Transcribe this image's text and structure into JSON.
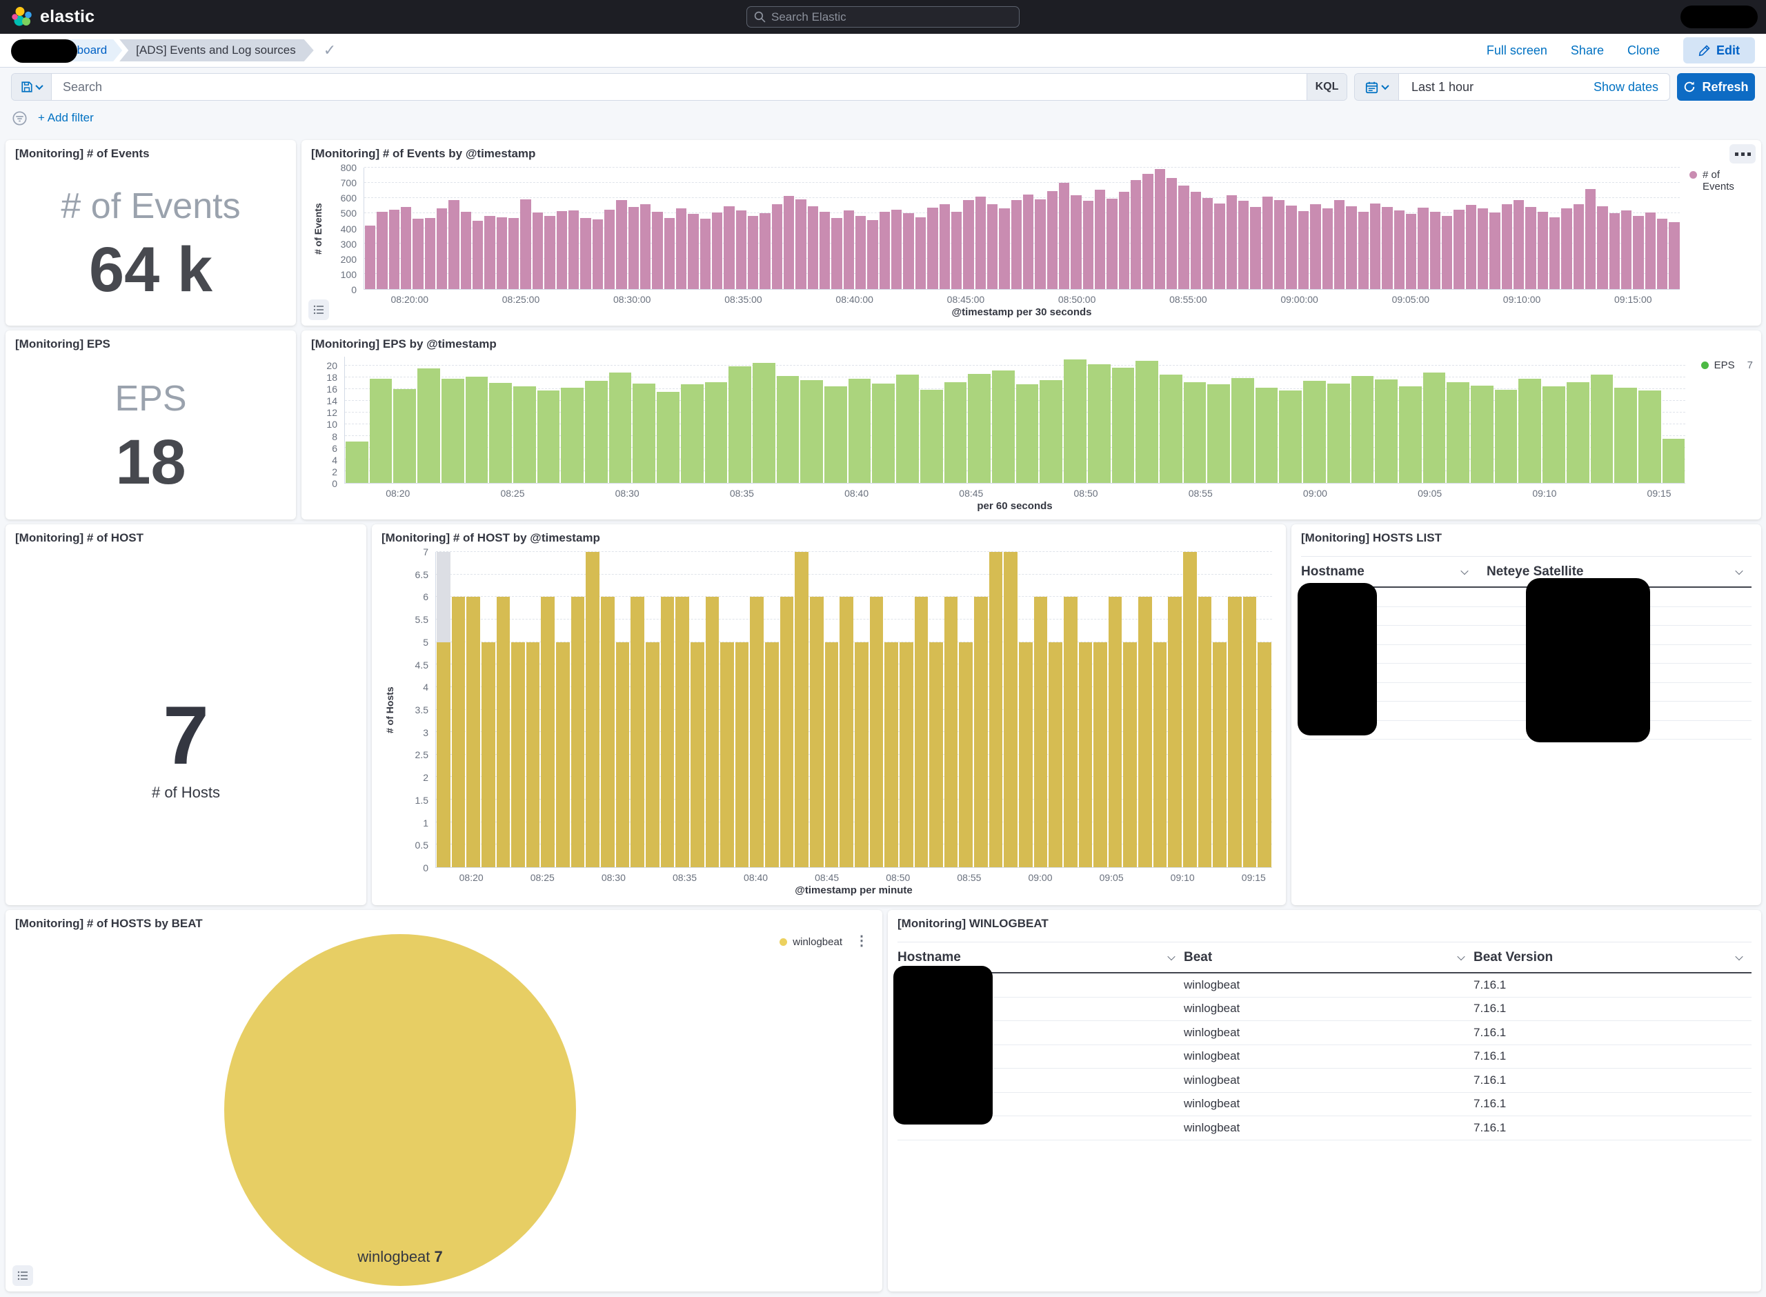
{
  "navbar": {
    "brand": "elastic",
    "search_placeholder": "Search Elastic"
  },
  "breadcrumbs": {
    "dashboard_link": "Dashboard",
    "current": "[ADS] Events and Log sources",
    "actions": {
      "full_screen": "Full screen",
      "share": "Share",
      "clone": "Clone",
      "edit": "Edit"
    }
  },
  "query_bar": {
    "search_placeholder": "Search",
    "kql_label": "KQL",
    "time_range": "Last 1 hour",
    "show_dates_label": "Show dates",
    "refresh_label": "Refresh",
    "add_filter_label": "+ Add filter"
  },
  "panels": {
    "events_metric": {
      "title": "[Monitoring] # of Events",
      "label": "# of Events",
      "value": "64 k"
    },
    "events_chart": {
      "title": "[Monitoring] # of Events by @timestamp"
    },
    "eps_metric": {
      "title": "[Monitoring] EPS",
      "label": "EPS",
      "value": "18"
    },
    "eps_chart": {
      "title": "[Monitoring] EPS by @timestamp"
    },
    "host_metric": {
      "title": "[Monitoring] # of HOST",
      "value": "7",
      "caption": "# of Hosts"
    },
    "host_chart": {
      "title": "[Monitoring] # of HOST by @timestamp"
    },
    "hosts_list": {
      "title": "[Monitoring] HOSTS LIST",
      "columns": [
        "Hostname",
        "Neteye Satellite"
      ],
      "row_count": 8
    },
    "pie": {
      "title": "[Monitoring] # of HOSTS by BEAT"
    },
    "winlogbeat": {
      "title": "[Monitoring] WINLOGBEAT",
      "columns": [
        "Hostname",
        "Beat",
        "Beat Version"
      ],
      "rows": [
        {
          "beat": "winlogbeat",
          "version": "7.16.1"
        },
        {
          "beat": "winlogbeat",
          "version": "7.16.1"
        },
        {
          "beat": "winlogbeat",
          "version": "7.16.1"
        },
        {
          "beat": "winlogbeat",
          "version": "7.16.1"
        },
        {
          "beat": "winlogbeat",
          "version": "7.16.1"
        },
        {
          "beat": "winlogbeat",
          "version": "7.16.1"
        },
        {
          "beat": "winlogbeat",
          "version": "7.16.1"
        }
      ]
    }
  },
  "chart_data": [
    {
      "id": "events_by_timestamp",
      "type": "bar",
      "title": "[Monitoring] # of Events by @timestamp",
      "ylabel": "# of Events",
      "xlabel": "@timestamp per 30 seconds",
      "color": "#c98cb1",
      "legend": {
        "label": "# of Events",
        "color": "#c98cb1",
        "position": "right"
      },
      "ylim": [
        0,
        800
      ],
      "yticks": [
        0,
        100,
        200,
        300,
        400,
        500,
        600,
        700,
        800
      ],
      "ymax_draw": 800,
      "grid": true,
      "xticks": [
        "08:20:00",
        "08:25:00",
        "08:30:00",
        "08:35:00",
        "08:40:00",
        "08:45:00",
        "08:50:00",
        "08:55:00",
        "09:00:00",
        "09:05:00",
        "09:10:00",
        "09:15:00"
      ],
      "xtick_offset_pct": 3.5,
      "xtick_step_pct": 8.45,
      "values": [
        420,
        510,
        525,
        540,
        465,
        470,
        530,
        585,
        510,
        450,
        480,
        475,
        470,
        590,
        505,
        480,
        515,
        520,
        470,
        460,
        525,
        585,
        540,
        560,
        510,
        470,
        530,
        495,
        465,
        505,
        545,
        520,
        480,
        500,
        560,
        615,
        590,
        545,
        510,
        470,
        520,
        480,
        455,
        510,
        525,
        500,
        475,
        535,
        560,
        510,
        585,
        610,
        560,
        530,
        585,
        625,
        590,
        645,
        700,
        620,
        580,
        655,
        595,
        640,
        720,
        760,
        790,
        730,
        680,
        640,
        600,
        565,
        620,
        580,
        540,
        610,
        585,
        550,
        515,
        560,
        530,
        585,
        545,
        510,
        565,
        540,
        520,
        495,
        535,
        510,
        480,
        525,
        555,
        530,
        505,
        560,
        585,
        540,
        510,
        475,
        530,
        560,
        660,
        545,
        500,
        520,
        480,
        505,
        465,
        440
      ]
    },
    {
      "id": "eps_by_timestamp",
      "type": "bar",
      "title": "[Monitoring] EPS by @timestamp",
      "ylabel": "",
      "xlabel": "per 60 seconds",
      "color": "#abd47d",
      "legend": {
        "label": "EPS",
        "value": "7",
        "color": "#4cb944",
        "position": "right"
      },
      "ylim": [
        0,
        20
      ],
      "yticks": [
        0,
        2,
        4,
        6,
        8,
        10,
        12,
        14,
        16,
        18,
        20
      ],
      "ymax_draw": 21.5,
      "grid": true,
      "xticks": [
        "08:20",
        "08:25",
        "08:30",
        "08:35",
        "08:40",
        "08:45",
        "08:50",
        "08:55",
        "09:00",
        "09:05",
        "09:10",
        "09:15"
      ],
      "xtick_offset_pct": 4,
      "xtick_step_pct": 8.55,
      "values": [
        7,
        17.7,
        16,
        19.5,
        17.8,
        18.1,
        17,
        16.5,
        15.8,
        16.2,
        17.4,
        18.8,
        16.9,
        15.5,
        16.8,
        17.2,
        19.8,
        20.5,
        18.2,
        17.5,
        16.4,
        17.8,
        16.9,
        18.4,
        15.9,
        17.2,
        18.6,
        19.2,
        16.8,
        17.5,
        21,
        20.2,
        19.6,
        20.8,
        18.4,
        17.2,
        16.8,
        17.9,
        16.2,
        15.8,
        17.4,
        16.9,
        18.2,
        17.6,
        16.4,
        18.8,
        17.2,
        16.6,
        15.9,
        17.8,
        16.5,
        17.2,
        18.4,
        16.2,
        15.8,
        7.5
      ]
    },
    {
      "id": "hosts_by_timestamp",
      "type": "bar",
      "title": "[Monitoring] # of HOST by @timestamp",
      "ylabel": "# of Hosts",
      "xlabel": "@timestamp per minute",
      "color": "#d6bc52",
      "ylim": [
        0,
        7
      ],
      "yticks": [
        0,
        0.5,
        1,
        1.5,
        2,
        2.5,
        3,
        3.5,
        4,
        4.5,
        5,
        5.5,
        6,
        6.5,
        7
      ],
      "ymax_draw": 7,
      "grid": true,
      "first_bar_overlay": {
        "top": 7,
        "color": "#dcdee4"
      },
      "xticks": [
        "08:20",
        "08:25",
        "08:30",
        "08:35",
        "08:40",
        "08:45",
        "08:50",
        "08:55",
        "09:00",
        "09:05",
        "09:10",
        "09:15"
      ],
      "xtick_offset_pct": 4.3,
      "xtick_step_pct": 8.5,
      "values": [
        5,
        6,
        6,
        5,
        6,
        5,
        5,
        6,
        5,
        6,
        7,
        6,
        5,
        6,
        5,
        6,
        6,
        5,
        6,
        5,
        5,
        6,
        5,
        6,
        7,
        6,
        5,
        6,
        5,
        6,
        5,
        5,
        6,
        5,
        6,
        5,
        6,
        7,
        7,
        5,
        6,
        5,
        6,
        5,
        5,
        6,
        5,
        6,
        5,
        6,
        7,
        6,
        5,
        6,
        6,
        5
      ]
    },
    {
      "id": "hosts_by_beat",
      "type": "pie",
      "title": "[Monitoring] # of HOSTS by BEAT",
      "slices": [
        {
          "label": "winlogbeat",
          "value": 7,
          "color": "#e7ce64"
        }
      ],
      "legend": {
        "label": "winlogbeat",
        "color": "#ecd15f",
        "position": "right"
      }
    }
  ]
}
